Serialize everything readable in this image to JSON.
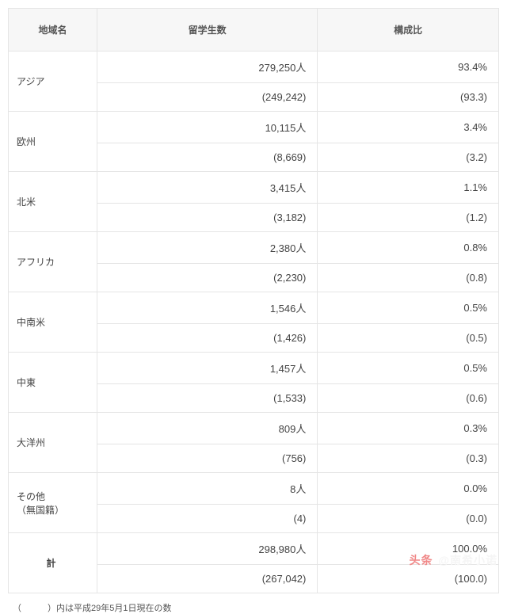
{
  "table": {
    "headers": {
      "region": "地域名",
      "students": "留学生数",
      "ratio": "構成比"
    },
    "rows": [
      {
        "region": "アジア",
        "students": "279,250人",
        "students_prev": "(249,242)",
        "ratio": "93.4%",
        "ratio_prev": "(93.3)"
      },
      {
        "region": "欧州",
        "students": "10,115人",
        "students_prev": "(8,669)",
        "ratio": "3.4%",
        "ratio_prev": "(3.2)"
      },
      {
        "region": "北米",
        "students": "3,415人",
        "students_prev": "(3,182)",
        "ratio": "1.1%",
        "ratio_prev": "(1.2)"
      },
      {
        "region": "アフリカ",
        "students": "2,380人",
        "students_prev": "(2,230)",
        "ratio": "0.8%",
        "ratio_prev": "(0.8)"
      },
      {
        "region": "中南米",
        "students": "1,546人",
        "students_prev": "(1,426)",
        "ratio": "0.5%",
        "ratio_prev": "(0.5)"
      },
      {
        "region": "中東",
        "students": "1,457人",
        "students_prev": "(1,533)",
        "ratio": "0.5%",
        "ratio_prev": "(0.6)"
      },
      {
        "region": "大洋州",
        "students": "809人",
        "students_prev": "(756)",
        "ratio": "0.3%",
        "ratio_prev": "(0.3)"
      },
      {
        "region": "その他\n（無国籍）",
        "students": "8人",
        "students_prev": "(4)",
        "ratio": "0.0%",
        "ratio_prev": "(0.0)"
      }
    ],
    "total": {
      "label": "計",
      "students": "298,980人",
      "students_prev": "(267,042)",
      "ratio": "100.0%",
      "ratio_prev": "(100.0)"
    }
  },
  "footnote": "（　　　）内は平成29年5月1日現在の数",
  "watermark": {
    "prefix": "头条",
    "author": "@南希小诺"
  },
  "style": {
    "col_widths": {
      "region": "112px",
      "students": "auto",
      "ratio": "auto"
    },
    "header_bg": "#f7f7f7",
    "border_color": "#e5e5e5",
    "font": "Hiragino Sans, Meiryo, sans-serif"
  }
}
